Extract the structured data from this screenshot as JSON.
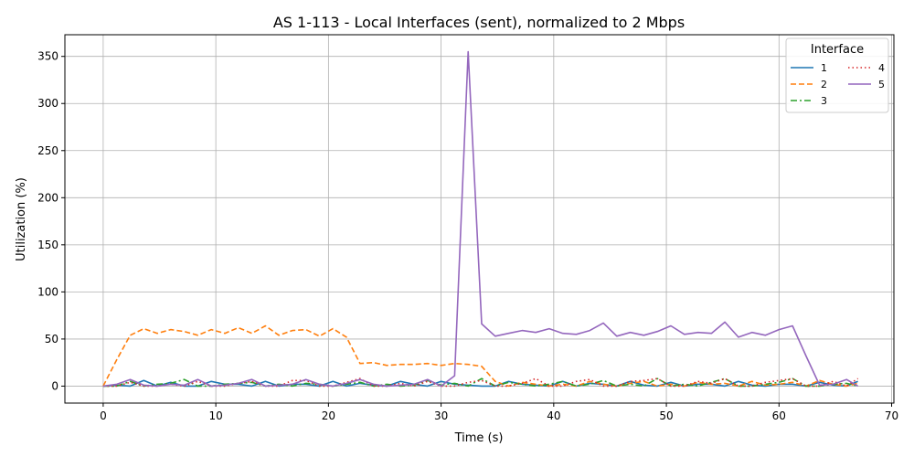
{
  "chart_data": {
    "type": "line",
    "title": "AS 1-113 - Local Interfaces (sent), normalized to 2 Mbps",
    "xlabel": "Time (s)",
    "ylabel": "Utilization (%)",
    "xlim": [
      -3.4,
      70.2
    ],
    "ylim": [
      -18,
      373
    ],
    "xticks": [
      0,
      10,
      20,
      30,
      40,
      50,
      60,
      70
    ],
    "yticks": [
      0,
      50,
      100,
      150,
      200,
      250,
      300,
      350
    ],
    "grid": true,
    "legend": {
      "title": "Interface",
      "placement": "top-right",
      "columns": 2
    },
    "x": [
      0,
      1.2,
      2.4,
      3.6,
      4.8,
      6.0,
      7.2,
      8.4,
      9.6,
      10.8,
      12.0,
      13.2,
      14.4,
      15.6,
      16.8,
      18.0,
      19.2,
      20.4,
      21.6,
      22.8,
      24.0,
      25.2,
      26.4,
      27.6,
      28.8,
      30.0,
      31.2,
      32.4,
      33.6,
      34.8,
      36.0,
      37.2,
      38.4,
      39.6,
      40.8,
      42.0,
      43.2,
      44.4,
      45.6,
      46.8,
      48.0,
      49.2,
      50.4,
      51.6,
      52.8,
      54.0,
      55.2,
      56.4,
      57.6,
      58.8,
      60.0,
      61.2,
      62.4,
      63.6,
      64.8,
      66.0,
      67.0
    ],
    "series": [
      {
        "name": "1",
        "color": "#1f77b4",
        "dash": "solid",
        "values": [
          0,
          1,
          0,
          6,
          0,
          4,
          0,
          0,
          5,
          2,
          2,
          0,
          5,
          0,
          2,
          2,
          0,
          5,
          0,
          3,
          1,
          0,
          5,
          2,
          0,
          5,
          2,
          1,
          0,
          0,
          5,
          2,
          1,
          0,
          5,
          0,
          3,
          2,
          0,
          5,
          1,
          0,
          4,
          0,
          2,
          2,
          0,
          5,
          1,
          0,
          2,
          2,
          0,
          4,
          1,
          0,
          5
        ]
      },
      {
        "name": "2",
        "color": "#ff7f0e",
        "dash": "dashed",
        "values": [
          0,
          28,
          54,
          61,
          56,
          60,
          58,
          54,
          60,
          56,
          62,
          56,
          64,
          54,
          59,
          60,
          53,
          61,
          52,
          24,
          25,
          22,
          23,
          23,
          24,
          22,
          24,
          23,
          21,
          5,
          0,
          4,
          2,
          0,
          2,
          0,
          5,
          2,
          0,
          3,
          5,
          0,
          2,
          0,
          4,
          2,
          3,
          0,
          5,
          1,
          2,
          4,
          0,
          6,
          2,
          0,
          3
        ]
      },
      {
        "name": "3",
        "color": "#2ca02c",
        "dash": "dashdot",
        "values": [
          0,
          0,
          5,
          0,
          2,
          3,
          7,
          0,
          0,
          2,
          3,
          4,
          0,
          2,
          0,
          3,
          2,
          0,
          2,
          4,
          0,
          2,
          0,
          1,
          6,
          1,
          3,
          0,
          8,
          0,
          4,
          2,
          0,
          2,
          5,
          0,
          2,
          6,
          0,
          2,
          0,
          8,
          0,
          2,
          0,
          4,
          8,
          0,
          0,
          2,
          4,
          8,
          0,
          0,
          2,
          3,
          0
        ]
      },
      {
        "name": "4",
        "color": "#d62728",
        "dash": "dotted",
        "values": [
          0,
          0,
          4,
          0,
          0,
          2,
          0,
          5,
          0,
          0,
          3,
          5,
          0,
          0,
          6,
          6,
          0,
          0,
          4,
          8,
          0,
          0,
          3,
          0,
          5,
          0,
          0,
          4,
          6,
          0,
          0,
          3,
          8,
          0,
          0,
          5,
          7,
          0,
          0,
          5,
          6,
          8,
          0,
          0,
          5,
          3,
          8,
          0,
          0,
          4,
          6,
          8,
          0,
          0,
          5,
          0,
          8
        ]
      },
      {
        "name": "5",
        "color": "#9467bd",
        "dash": "solid",
        "values": [
          0,
          2,
          7,
          1,
          0,
          2,
          1,
          7,
          0,
          1,
          3,
          7,
          0,
          1,
          2,
          7,
          2,
          0,
          3,
          7,
          2,
          0,
          1,
          2,
          7,
          0,
          11,
          355,
          66,
          53,
          56,
          59,
          57,
          61,
          56,
          55,
          59,
          67,
          53,
          57,
          54,
          58,
          64,
          55,
          57,
          56,
          68,
          52,
          57,
          54,
          60,
          64,
          32,
          1,
          2,
          7,
          0
        ]
      }
    ]
  }
}
